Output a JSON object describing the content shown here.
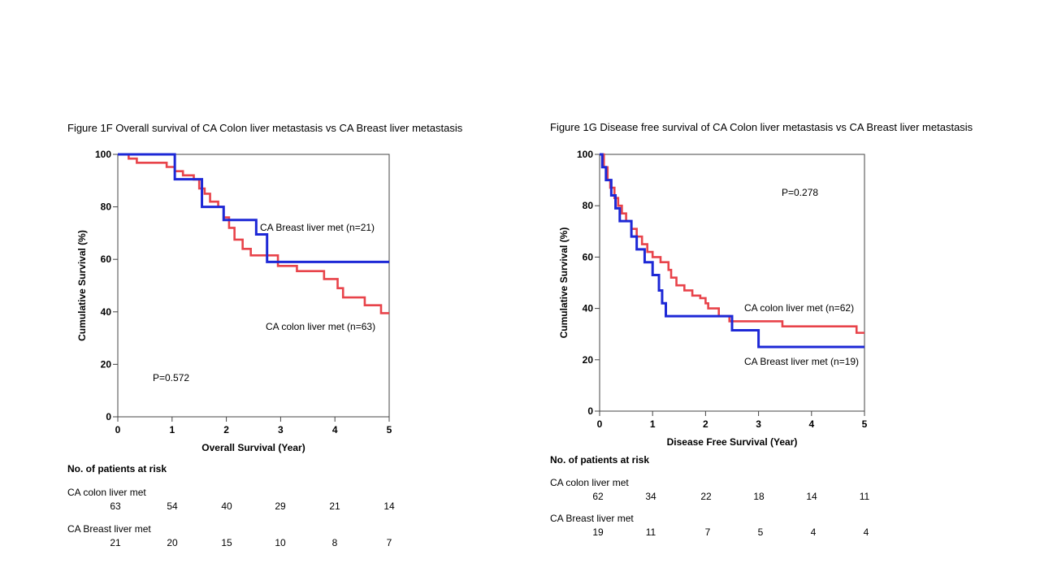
{
  "chart_data": [
    {
      "type": "line",
      "title": "Figure 1F Overall survival of CA Colon liver metastasis vs CA Breast liver metastasis",
      "xlabel": "Overall Survival (Year)",
      "ylabel": "Cumulative Survival (%)",
      "xlim": [
        0,
        5
      ],
      "ylim": [
        0,
        100
      ],
      "xticks": [
        "0",
        "1",
        "2",
        "3",
        "4",
        "5"
      ],
      "yticks": [
        "0",
        "20",
        "40",
        "60",
        "80",
        "100"
      ],
      "pvalue": "P=0.572",
      "series": [
        {
          "name": "CA colon liver met (n=63)",
          "color": "#e8434a",
          "x": [
            0,
            0.2,
            0.35,
            0.9,
            1.05,
            1.2,
            1.4,
            1.5,
            1.6,
            1.7,
            1.85,
            1.95,
            2.05,
            2.15,
            2.3,
            2.45,
            2.75,
            2.95,
            3.3,
            3.8,
            4.05,
            4.15,
            4.55,
            4.85,
            5.0
          ],
          "y": [
            100,
            98.4,
            96.8,
            95.2,
            93.6,
            92,
            90.4,
            87,
            85,
            82,
            80,
            76,
            72,
            67.5,
            64,
            61.5,
            61.5,
            57.5,
            55.5,
            52.5,
            49,
            45.5,
            42.5,
            39.5,
            39.5
          ]
        },
        {
          "name": "CA Breast liver met (n=21)",
          "color": "#1d28d6",
          "x": [
            0,
            1.05,
            1.55,
            1.95,
            2.55,
            2.75,
            5.0
          ],
          "y": [
            100,
            90.5,
            80,
            75,
            69.5,
            59,
            59
          ]
        }
      ],
      "risk_table": {
        "heading": "No. of patients at risk",
        "rows": [
          {
            "label": "CA colon liver met",
            "counts": [
              "63",
              "54",
              "40",
              "29",
              "21",
              "14"
            ]
          },
          {
            "label": "CA Breast liver met",
            "counts": [
              "21",
              "20",
              "15",
              "10",
              "8",
              "7"
            ]
          }
        ]
      }
    },
    {
      "type": "line",
      "title": "Figure 1G Disease free survival of CA Colon liver metastasis vs CA Breast liver metastasis",
      "xlabel": "Disease Free Survival (Year)",
      "ylabel": "Cumulative Survival (%)",
      "xlim": [
        0,
        5
      ],
      "ylim": [
        0,
        100
      ],
      "xticks": [
        "0",
        "1",
        "2",
        "3",
        "4",
        "5"
      ],
      "yticks": [
        "0",
        "20",
        "40",
        "60",
        "80",
        "100"
      ],
      "pvalue": "P=0.278",
      "series": [
        {
          "name": "CA colon liver met (n=62)",
          "color": "#e8434a",
          "x": [
            0,
            0.08,
            0.15,
            0.2,
            0.28,
            0.35,
            0.42,
            0.5,
            0.6,
            0.7,
            0.8,
            0.9,
            1.0,
            1.15,
            1.3,
            1.35,
            1.45,
            1.6,
            1.75,
            1.9,
            2.0,
            2.05,
            2.25,
            2.45,
            2.75,
            3.2,
            3.45,
            4.25,
            4.5,
            4.85,
            5.0
          ],
          "y": [
            100,
            95,
            90,
            87,
            83,
            80,
            77,
            74,
            71,
            68,
            65,
            62,
            60,
            58,
            55,
            52,
            49,
            47,
            45,
            44,
            42,
            40,
            37,
            35,
            35,
            35,
            33,
            33,
            33,
            30.5,
            30.5
          ]
        },
        {
          "name": "CA Breast liver met (n=19)",
          "color": "#1d28d6",
          "x": [
            0,
            0.05,
            0.12,
            0.22,
            0.3,
            0.38,
            0.45,
            0.6,
            0.7,
            0.85,
            1.0,
            1.12,
            1.18,
            1.25,
            1.45,
            2.05,
            2.5,
            3.0,
            5.0
          ],
          "y": [
            100,
            95,
            90,
            84,
            79,
            74,
            74,
            68,
            63,
            58,
            53,
            47,
            42,
            37,
            37,
            37,
            31.5,
            25,
            25
          ]
        }
      ],
      "risk_table": {
        "heading": "No. of patients at risk",
        "rows": [
          {
            "label": "CA colon liver met",
            "counts": [
              "62",
              "34",
              "22",
              "18",
              "14",
              "11"
            ]
          },
          {
            "label": "CA Breast liver met",
            "counts": [
              "19",
              "11",
              "7",
              "5",
              "4",
              "4"
            ]
          }
        ]
      }
    }
  ]
}
